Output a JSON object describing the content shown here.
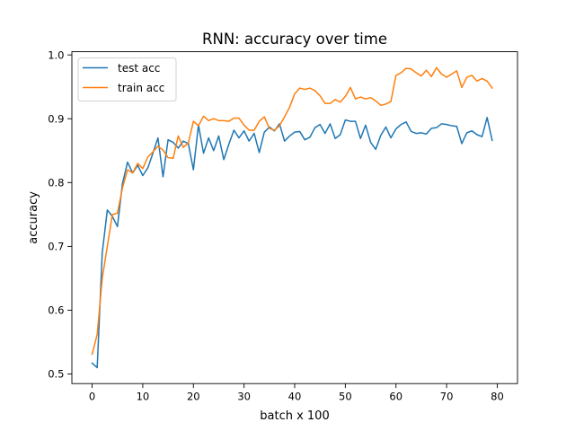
{
  "chart_data": {
    "type": "line",
    "title": "RNN: accuracy over time",
    "xlabel": "batch x 100",
    "ylabel": "accuracy",
    "xlim": [
      -4,
      84
    ],
    "ylim": [
      0.485,
      1.005
    ],
    "xticks": [
      0,
      10,
      20,
      30,
      40,
      50,
      60,
      70,
      80
    ],
    "xtick_labels": [
      "0",
      "10",
      "20",
      "30",
      "40",
      "50",
      "60",
      "70",
      "80"
    ],
    "yticks": [
      0.5,
      0.6,
      0.7,
      0.8,
      0.9,
      1.0
    ],
    "ytick_labels": [
      "0.5",
      "0.6",
      "0.7",
      "0.8",
      "0.9",
      "1.0"
    ],
    "grid": false,
    "legend_position": "top-left",
    "series": [
      {
        "name": "test acc",
        "color": "#1f77b4",
        "values": [
          0.517,
          0.51,
          0.69,
          0.757,
          0.747,
          0.731,
          0.799,
          0.832,
          0.815,
          0.827,
          0.811,
          0.823,
          0.846,
          0.87,
          0.809,
          0.867,
          0.863,
          0.854,
          0.865,
          0.861,
          0.82,
          0.89,
          0.846,
          0.87,
          0.85,
          0.873,
          0.836,
          0.86,
          0.882,
          0.87,
          0.881,
          0.865,
          0.877,
          0.847,
          0.879,
          0.887,
          0.881,
          0.892,
          0.865,
          0.873,
          0.879,
          0.88,
          0.867,
          0.871,
          0.886,
          0.891,
          0.877,
          0.892,
          0.869,
          0.875,
          0.898,
          0.896,
          0.896,
          0.869,
          0.89,
          0.863,
          0.852,
          0.874,
          0.887,
          0.87,
          0.884,
          0.891,
          0.895,
          0.88,
          0.877,
          0.878,
          0.876,
          0.885,
          0.886,
          0.892,
          0.891,
          0.889,
          0.888,
          0.861,
          0.878,
          0.881,
          0.875,
          0.872,
          0.902,
          0.866
        ]
      },
      {
        "name": "train acc",
        "color": "#ff7f0e",
        "values": [
          0.531,
          0.562,
          0.65,
          0.7,
          0.75,
          0.752,
          0.792,
          0.82,
          0.815,
          0.83,
          0.822,
          0.84,
          0.848,
          0.857,
          0.851,
          0.839,
          0.838,
          0.873,
          0.855,
          0.862,
          0.896,
          0.889,
          0.904,
          0.897,
          0.9,
          0.897,
          0.897,
          0.896,
          0.901,
          0.901,
          0.89,
          0.882,
          0.882,
          0.896,
          0.903,
          0.885,
          0.882,
          0.889,
          0.903,
          0.918,
          0.939,
          0.948,
          0.946,
          0.948,
          0.944,
          0.936,
          0.924,
          0.924,
          0.93,
          0.926,
          0.935,
          0.949,
          0.931,
          0.934,
          0.931,
          0.933,
          0.928,
          0.921,
          0.923,
          0.927,
          0.968,
          0.972,
          0.979,
          0.978,
          0.972,
          0.967,
          0.976,
          0.966,
          0.98,
          0.97,
          0.965,
          0.97,
          0.975,
          0.949,
          0.965,
          0.968,
          0.959,
          0.963,
          0.959,
          0.948
        ]
      }
    ]
  }
}
